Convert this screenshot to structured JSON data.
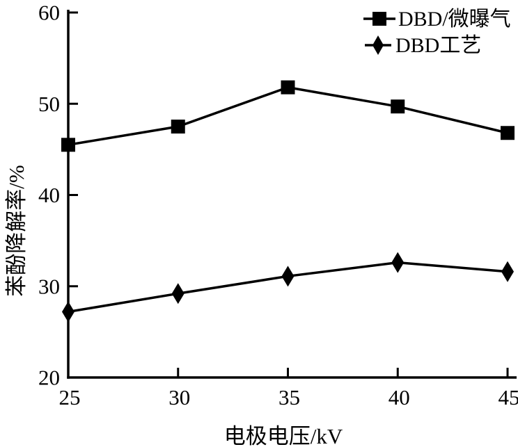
{
  "figure": {
    "background": "#ffffff",
    "ink_color": "#000000"
  },
  "chart_data": {
    "type": "line",
    "x": [
      25,
      30,
      35,
      40,
      45
    ],
    "series": [
      {
        "name": "DBD/微曝气",
        "marker": "square",
        "color": "#000000",
        "values": [
          45.5,
          47.5,
          51.8,
          49.7,
          46.8
        ]
      },
      {
        "name": "DBD工艺",
        "marker": "diamond",
        "color": "#000000",
        "values": [
          27.2,
          29.2,
          31.1,
          32.6,
          31.6
        ]
      }
    ],
    "title": "",
    "xlabel": "电极电压/kV",
    "ylabel": "苯酚降解率/%",
    "xlim": [
      25,
      45
    ],
    "ylim": [
      20,
      60
    ],
    "x_ticks": [
      25,
      30,
      35,
      40,
      45
    ],
    "y_ticks": [
      20,
      30,
      40,
      50,
      60
    ],
    "grid": false,
    "legend_position": "top-right",
    "legend_markers": [
      "square-on-line-icon",
      "diamond-on-line-icon"
    ]
  }
}
